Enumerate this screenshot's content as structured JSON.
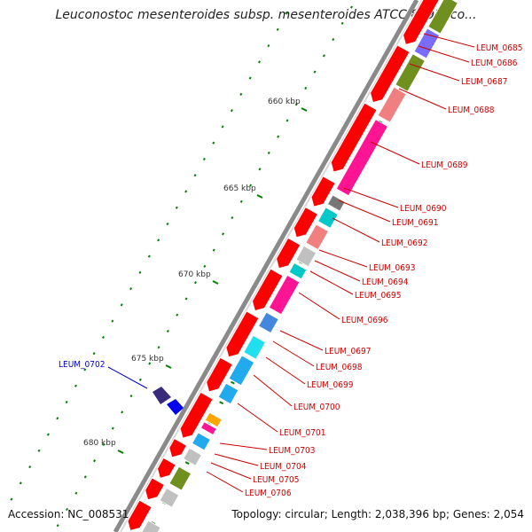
{
  "title": "Leuconostoc mesenteroides subsp. mesenteroides ATCC 8293, co...",
  "footer": {
    "accession": "Accession: NC_008531",
    "topology": "Topology: circular; Length: 2,038,396 bp; Genes: 2,054"
  },
  "kbp_labels": [
    "660 kbp",
    "665 kbp",
    "670 kbp",
    "675 kbp",
    "680 kbp"
  ],
  "gene_labels_forward": [
    "LEUM_0685",
    "LEUM_0686",
    "LEUM_0687",
    "LEUM_0688",
    "LEUM_0689",
    "LEUM_0690",
    "LEUM_0691",
    "LEUM_0692",
    "LEUM_0693",
    "LEUM_0694",
    "LEUM_0695",
    "LEUM_0696",
    "LEUM_0697",
    "LEUM_0698",
    "LEUM_0699",
    "LEUM_0700",
    "LEUM_0701",
    "LEUM_0703",
    "LEUM_0704",
    "LEUM_0705",
    "LEUM_0706"
  ],
  "gene_labels_reverse": [
    "LEUM_0702"
  ],
  "colors": {
    "backbone": "#8a8a8a",
    "cds": "#ff0000",
    "label_line_forward": "#cc0000",
    "label_line_reverse": "#0000cc",
    "tick": "#008000"
  }
}
